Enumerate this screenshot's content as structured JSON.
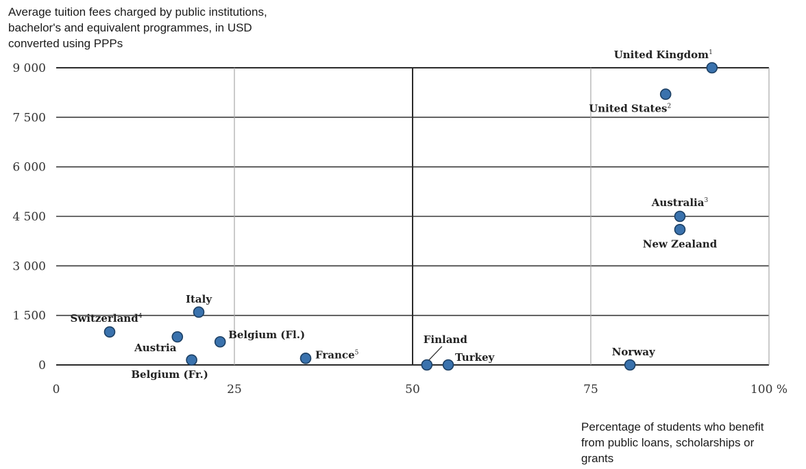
{
  "chart_data": {
    "type": "scatter",
    "ylabel": "Average tuition fees charged by public institutions, bachelor's and equivalent programmes, in USD converted using PPPs",
    "xlabel": "Percentage of students who benefit from public loans, scholarships or grants",
    "xlim": [
      0,
      100
    ],
    "ylim": [
      0,
      9000
    ],
    "x_ticks": [
      {
        "value": 0,
        "label": "0"
      },
      {
        "value": 25,
        "label": "25"
      },
      {
        "value": 50,
        "label": "50"
      },
      {
        "value": 75,
        "label": "75"
      },
      {
        "value": 100,
        "label": "100 %"
      }
    ],
    "y_ticks": [
      {
        "value": 0,
        "label": "0"
      },
      {
        "value": 1500,
        "label": "1 500"
      },
      {
        "value": 3000,
        "label": "3 000"
      },
      {
        "value": 4500,
        "label": "4 500"
      },
      {
        "value": 6000,
        "label": "6 000"
      },
      {
        "value": 7500,
        "label": "7 500"
      },
      {
        "value": 9000,
        "label": "9 000"
      }
    ],
    "grid": true,
    "color": "#3a72ad",
    "points": [
      {
        "label": "United Kingdom",
        "note": "1",
        "x": 92,
        "y": 9000
      },
      {
        "label": "United States",
        "note": "2",
        "x": 85.5,
        "y": 8200
      },
      {
        "label": "Australia",
        "note": "3",
        "x": 87.5,
        "y": 4500
      },
      {
        "label": "New Zealand",
        "note": "",
        "x": 87.5,
        "y": 4100
      },
      {
        "label": "Italy",
        "note": "",
        "x": 20,
        "y": 1600
      },
      {
        "label": "Switzerland",
        "note": "4",
        "x": 7.5,
        "y": 1000
      },
      {
        "label": "Austria",
        "note": "",
        "x": 17,
        "y": 850
      },
      {
        "label": "Belgium (Fl.)",
        "note": "",
        "x": 23,
        "y": 700
      },
      {
        "label": "Belgium (Fr.)",
        "note": "",
        "x": 19,
        "y": 150
      },
      {
        "label": "France",
        "note": "5",
        "x": 35,
        "y": 200
      },
      {
        "label": "Finland",
        "note": "",
        "x": 52,
        "y": 0
      },
      {
        "label": "Turkey",
        "note": "",
        "x": 55,
        "y": 0
      },
      {
        "label": "Norway",
        "note": "",
        "x": 80.5,
        "y": 0
      }
    ]
  }
}
